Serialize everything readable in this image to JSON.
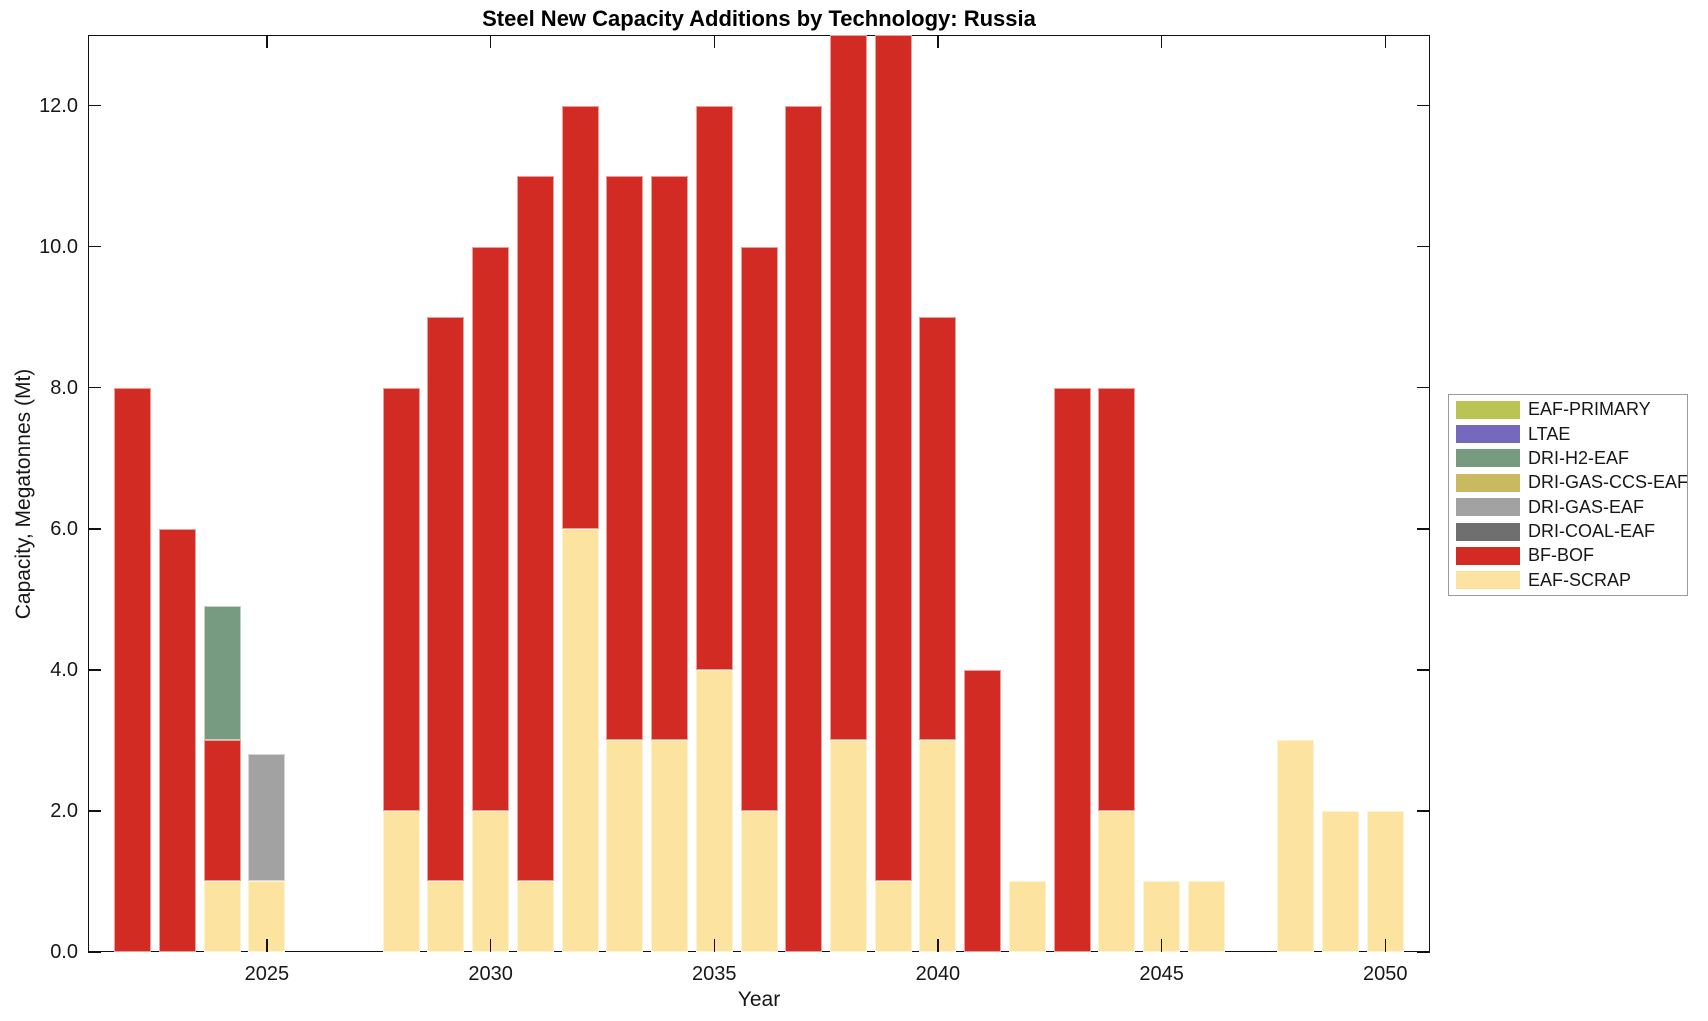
{
  "figure": {
    "title": "Steel New Capacity Additions by Technology: Russia",
    "xlabel": "Year",
    "ylabel": "Capacity, Megatonnes (Mt)"
  },
  "axes": {
    "y_ticks": [
      {
        "value": 0,
        "label": "0.0"
      },
      {
        "value": 2,
        "label": "2.0"
      },
      {
        "value": 4,
        "label": "4.0"
      },
      {
        "value": 6,
        "label": "6.0"
      },
      {
        "value": 8,
        "label": "8.0"
      },
      {
        "value": 10,
        "label": "10.0"
      },
      {
        "value": 12,
        "label": "12.0"
      }
    ],
    "x_ticks": [
      {
        "value": 2025,
        "label": "2025"
      },
      {
        "value": 2030,
        "label": "2030"
      },
      {
        "value": 2035,
        "label": "2035"
      },
      {
        "value": 2040,
        "label": "2040"
      },
      {
        "value": 2045,
        "label": "2045"
      },
      {
        "value": 2050,
        "label": "2050"
      }
    ],
    "x_range": [
      2021,
      2051
    ],
    "y_range": [
      0,
      13
    ],
    "grid": false
  },
  "legend": {
    "position": "right-outside",
    "items": [
      {
        "label": "EAF-PRIMARY",
        "color": "#b9c454"
      },
      {
        "label": "LTAE",
        "color": "#7569bd"
      },
      {
        "label": "DRI-H2-EAF",
        "color": "#779b81"
      },
      {
        "label": "DRI-GAS-CCS-EAF",
        "color": "#c9ba62"
      },
      {
        "label": "DRI-GAS-EAF",
        "color": "#a2a2a2"
      },
      {
        "label": "DRI-COAL-EAF",
        "color": "#6f6f6f"
      },
      {
        "label": "BF-BOF",
        "color": "#d22b24"
      },
      {
        "label": "EAF-SCRAP",
        "color": "#fce3a0"
      }
    ]
  },
  "chart_data": {
    "type": "bar",
    "stacked": true,
    "title": "Steel New Capacity Additions by Technology: Russia",
    "xlabel": "Year",
    "ylabel": "Capacity, Megatonnes (Mt)",
    "xlim": [
      2021,
      2051
    ],
    "ylim": [
      0,
      13
    ],
    "x": [
      2022,
      2023,
      2024,
      2025,
      2026,
      2027,
      2028,
      2029,
      2030,
      2031,
      2032,
      2033,
      2034,
      2035,
      2036,
      2037,
      2038,
      2039,
      2040,
      2041,
      2042,
      2043,
      2044,
      2045,
      2046,
      2047,
      2048,
      2049,
      2050
    ],
    "series": [
      {
        "name": "EAF-SCRAP",
        "color": "#fce3a0",
        "values": [
          0,
          0,
          1,
          1,
          0,
          0,
          2,
          1,
          2,
          1,
          6,
          3,
          3,
          4,
          2,
          0,
          3,
          1,
          3,
          0,
          1,
          0,
          2,
          1,
          1,
          0,
          3,
          2,
          2
        ]
      },
      {
        "name": "BF-BOF",
        "color": "#d22b24",
        "values": [
          8,
          6,
          2,
          0,
          0,
          0,
          6,
          8,
          8,
          10,
          6,
          8,
          8,
          8,
          8,
          12,
          10,
          12,
          6,
          4,
          0,
          8,
          6,
          0,
          0,
          0,
          0,
          0,
          0
        ]
      },
      {
        "name": "DRI-COAL-EAF",
        "color": "#6f6f6f",
        "values": [
          0,
          0,
          0,
          0,
          0,
          0,
          0,
          0,
          0,
          0,
          0,
          0,
          0,
          0,
          0,
          0,
          0,
          0,
          0,
          0,
          0,
          0,
          0,
          0,
          0,
          0,
          0,
          0,
          0
        ]
      },
      {
        "name": "DRI-GAS-EAF",
        "color": "#a2a2a2",
        "values": [
          0,
          0,
          0,
          1.8,
          0,
          0,
          0,
          0,
          0,
          0,
          0,
          0,
          0,
          0,
          0,
          0,
          0,
          0,
          0,
          0,
          0,
          0,
          0,
          0,
          0,
          0,
          0,
          0,
          0
        ]
      },
      {
        "name": "DRI-GAS-CCS-EAF",
        "color": "#c9ba62",
        "values": [
          0,
          0,
          0,
          0,
          0,
          0,
          0,
          0,
          0,
          0,
          0,
          0,
          0,
          0,
          0,
          0,
          0,
          0,
          0,
          0,
          0,
          0,
          0,
          0,
          0,
          0,
          0,
          0,
          0
        ]
      },
      {
        "name": "DRI-H2-EAF",
        "color": "#779b81",
        "values": [
          0,
          0,
          1.9,
          0,
          0,
          0,
          0,
          0,
          0,
          0,
          0,
          0,
          0,
          0,
          0,
          0,
          0,
          0,
          0,
          0,
          0,
          0,
          0,
          0,
          0,
          0,
          0,
          0,
          0
        ]
      },
      {
        "name": "LTAE",
        "color": "#7569bd",
        "values": [
          0,
          0,
          0,
          0,
          0,
          0,
          0,
          0,
          0,
          0,
          0,
          0,
          0,
          0,
          0,
          0,
          0,
          0,
          0,
          0,
          0,
          0,
          0,
          0,
          0,
          0,
          0,
          0,
          0
        ]
      },
      {
        "name": "EAF-PRIMARY",
        "color": "#b9c454",
        "values": [
          0,
          0,
          0,
          0,
          0,
          0,
          0,
          0,
          0,
          0,
          0,
          0,
          0,
          0,
          0,
          0,
          0,
          0,
          0,
          0,
          0,
          0,
          0,
          0,
          0,
          0,
          0,
          0,
          0
        ]
      }
    ],
    "note": "Bars for 2038 and 2039 reach the top of the axes (y-axis max 13) and are clipped there."
  }
}
